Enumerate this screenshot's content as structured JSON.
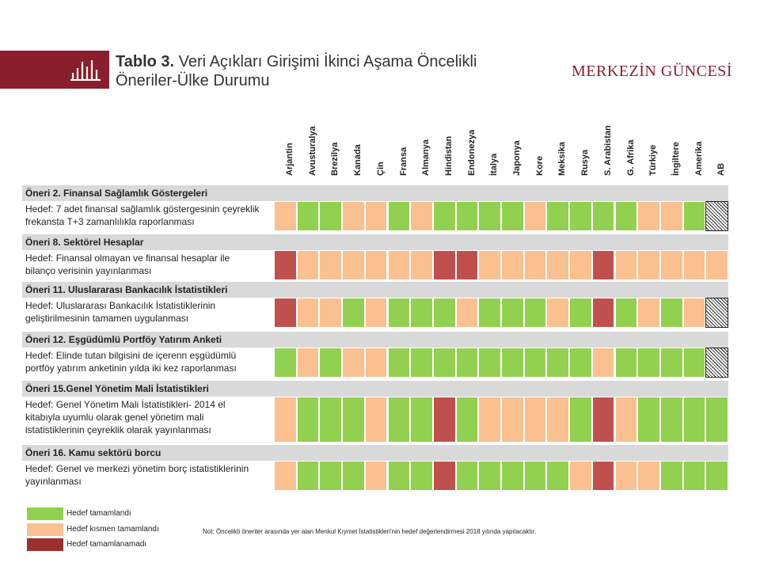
{
  "header": {
    "title_bold": "Tablo 3.",
    "title_line1": "Veri Açıkları Girişimi İkinci Aşama Öncelikli",
    "title_line2": "Öneriler-Ülke Durumu",
    "brand": "MERKEZİN GÜNCESİ",
    "brand_color": "#8b1e2b"
  },
  "countries": [
    "Arjantin",
    "Avusturalya",
    "Brezilya",
    "Kanada",
    "Çin",
    "Fransa",
    "Almanya",
    "Hindistan",
    "Endonezya",
    "İtalya",
    "Japonya",
    "Kore",
    "Meksika",
    "Rusya",
    "S. Arabistan",
    "G. Afrika",
    "Türkiye",
    "İngiltere",
    "Amerika",
    "AB"
  ],
  "status_colors": {
    "G": "#92d050",
    "O": "#fac090",
    "R": "#c0504d"
  },
  "sections": [
    {
      "title": "Öneri 2. Finansal Sağlamlık Göstergeleri",
      "target_lines": [
        "Hedef: 7 adet finansal sağlamlık göstergesinin çeyreklik",
        "frekansta T+3 zamanlılıkla raporlanması"
      ],
      "statuses": [
        "O",
        "G",
        "G",
        "O",
        "O",
        "G",
        "O",
        "G",
        "G",
        "G",
        "G",
        "O",
        "G",
        "G",
        "G",
        "G",
        "O",
        "O",
        "G",
        "H"
      ]
    },
    {
      "title": "Öneri 8. Sektörel Hesaplar",
      "target_lines": [
        "Hedef: Finansal olmayan ve finansal hesaplar ile",
        "bilanço verisinin yayınlanması"
      ],
      "statuses": [
        "R",
        "O",
        "O",
        "O",
        "O",
        "O",
        "O",
        "R",
        "R",
        "O",
        "O",
        "O",
        "O",
        "O",
        "R",
        "O",
        "O",
        "O",
        "O",
        "O"
      ]
    },
    {
      "title": "Öneri 11. Uluslararası Bankacılık İstatistikleri",
      "target_lines": [
        "Hedef: Uluslararası Bankacılık İstatistiklerinin",
        "geliştirilmesinin tamamen uygulanması"
      ],
      "statuses": [
        "R",
        "O",
        "O",
        "G",
        "O",
        "G",
        "G",
        "G",
        "O",
        "G",
        "G",
        "G",
        "O",
        "G",
        "R",
        "G",
        "O",
        "G",
        "O",
        "H"
      ]
    },
    {
      "title": "Öneri 12. Eşgüdümlü Portföy Yatırım Anketi",
      "target_lines": [
        "Hedef: Elinde tutan bilgisini de içerenn eşgüdümlü",
        "portföy yatırım anketinin yılda iki kez raporlanması"
      ],
      "statuses": [
        "G",
        "O",
        "G",
        "O",
        "O",
        "G",
        "G",
        "G",
        "G",
        "G",
        "G",
        "G",
        "G",
        "G",
        "O",
        "G",
        "G",
        "G",
        "G",
        "H"
      ]
    },
    {
      "title": "Öneri 15.Genel Yönetim Mali İstatistikleri",
      "target_lines": [
        "Hedef: Genel Yönetim Mali İstatistikleri- 2014 el",
        "kitabıyla uyumlu olarak genel yönetim mali",
        "istatistiklerinin çeyreklik olarak yayınlanması"
      ],
      "statuses": [
        "O",
        "G",
        "G",
        "G",
        "O",
        "G",
        "G",
        "R",
        "G",
        "O",
        "O",
        "O",
        "O",
        "G",
        "R",
        "O",
        "G",
        "G",
        "G",
        "G"
      ]
    },
    {
      "title": "Öneri 16. Kamu sektörü borcu",
      "target_lines": [
        "Hedef: Genel ve merkezi yönetim borç istatistiklerinin",
        "yayınlanması"
      ],
      "statuses": [
        "O",
        "G",
        "G",
        "G",
        "O",
        "G",
        "G",
        "R",
        "G",
        "G",
        "G",
        "G",
        "G",
        "O",
        "R",
        "O",
        "O",
        "G",
        "G",
        "G"
      ]
    }
  ],
  "legend": [
    {
      "label": "Hedef tamamlandı",
      "color": "#92d050"
    },
    {
      "label": "Hedef kısmen tamamlandı",
      "color": "#fac090"
    },
    {
      "label": "Hedef tamamlanamadı",
      "color": "#9c2f2f"
    }
  ],
  "note": "Not: Öncelikli öneriler arasında yer alan Menkul Kıymet İstatistikleri'nin hedef değerlendirmesi 2018 yılında yapılacaktır."
}
